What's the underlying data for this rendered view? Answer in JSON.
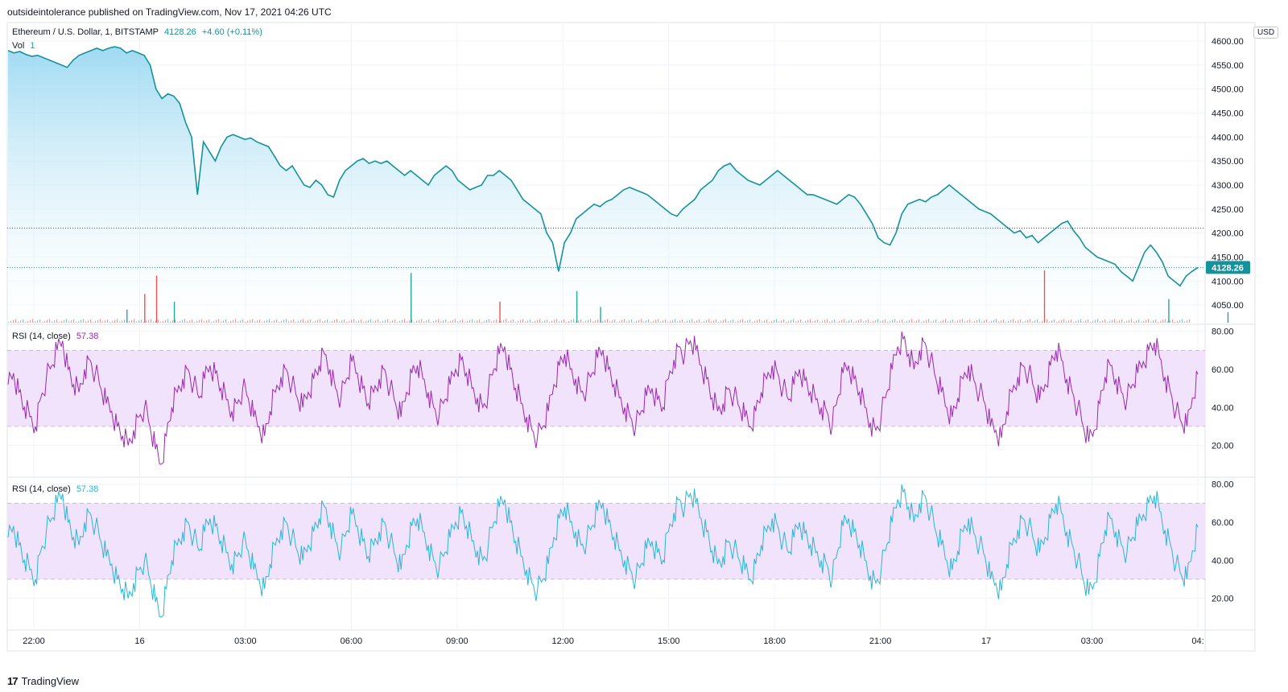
{
  "header": {
    "published_text": "outsideintolerance published on TradingView.com, Nov 17, 2021 04:26 UTC"
  },
  "legend": {
    "symbol": "Ethereum / U.S. Dollar, 1, BITSTAMP",
    "price": "4128.26",
    "change": "+4.60 (+0.11%)",
    "vol_label": "Vol",
    "vol_value": "1"
  },
  "rsi_panels": [
    {
      "label": "RSI (14, close)",
      "value": "57.38",
      "color": "#9c27b0"
    },
    {
      "label": "RSI (14, close)",
      "value": "57.38",
      "color": "#29b6d8"
    }
  ],
  "currency": "USD",
  "footer": {
    "brand": "TradingView",
    "logo_glyph": "17"
  },
  "colors": {
    "price_line": "#16929c",
    "area_top": "#8fd4f0",
    "last_price_badge": "#16929c",
    "vol_up": "#26a69a",
    "vol_down": "#ef5350",
    "rsi_band": "#f1e3fb",
    "grid": "#f0f3fa"
  },
  "chart_data": [
    {
      "type": "area",
      "title": "Ethereum / U.S. Dollar, 1, BITSTAMP",
      "x_ticks": [
        "22:00",
        "16",
        "03:00",
        "06:00",
        "09:00",
        "12:00",
        "15:00",
        "18:00",
        "21:00",
        "17",
        "03:00",
        "04:"
      ],
      "y_ticks": [
        "4050.00",
        "4100.00",
        "4150.00",
        "4200.00",
        "4250.00",
        "4300.00",
        "4350.00",
        "4400.00",
        "4450.00",
        "4500.00",
        "4550.00",
        "4600.00"
      ],
      "ylim": [
        4010,
        4625
      ],
      "last_value": 4128.26,
      "reference_line": 4210,
      "series": [
        {
          "values": [
            4580,
            4575,
            4578,
            4572,
            4568,
            4570,
            4565,
            4560,
            4555,
            4550,
            4545,
            4560,
            4570,
            4575,
            4580,
            4585,
            4580,
            4585,
            4588,
            4585,
            4575,
            4580,
            4575,
            4570,
            4550,
            4500,
            4480,
            4490,
            4485,
            4470,
            4430,
            4400,
            4280,
            4390,
            4370,
            4350,
            4380,
            4400,
            4405,
            4400,
            4395,
            4398,
            4390,
            4385,
            4380,
            4360,
            4340,
            4330,
            4340,
            4320,
            4300,
            4295,
            4310,
            4300,
            4280,
            4275,
            4310,
            4330,
            4340,
            4350,
            4355,
            4345,
            4350,
            4345,
            4350,
            4340,
            4330,
            4320,
            4330,
            4320,
            4310,
            4300,
            4320,
            4330,
            4340,
            4330,
            4310,
            4300,
            4290,
            4295,
            4300,
            4320,
            4320,
            4330,
            4320,
            4310,
            4290,
            4270,
            4260,
            4250,
            4240,
            4200,
            4180,
            4120,
            4180,
            4200,
            4230,
            4240,
            4250,
            4260,
            4255,
            4265,
            4270,
            4280,
            4290,
            4295,
            4290,
            4285,
            4280,
            4270,
            4260,
            4250,
            4240,
            4235,
            4250,
            4260,
            4270,
            4290,
            4300,
            4310,
            4330,
            4340,
            4345,
            4330,
            4320,
            4310,
            4305,
            4300,
            4310,
            4320,
            4330,
            4320,
            4310,
            4300,
            4290,
            4280,
            4280,
            4275,
            4270,
            4265,
            4260,
            4270,
            4280,
            4275,
            4260,
            4240,
            4220,
            4190,
            4180,
            4175,
            4200,
            4240,
            4260,
            4265,
            4270,
            4265,
            4275,
            4280,
            4290,
            4300,
            4290,
            4280,
            4270,
            4260,
            4250,
            4245,
            4240,
            4230,
            4220,
            4210,
            4200,
            4205,
            4190,
            4195,
            4180,
            4190,
            4200,
            4210,
            4220,
            4225,
            4205,
            4190,
            4170,
            4160,
            4150,
            4145,
            4140,
            4135,
            4120,
            4110,
            4100,
            4130,
            4160,
            4175,
            4160,
            4140,
            4110,
            4100,
            4090,
            4110,
            4120,
            4128.26
          ]
        }
      ]
    },
    {
      "type": "bar",
      "title": "Vol",
      "note": "volume histogram along bottom of price pane",
      "spikes": [
        {
          "index": 20,
          "rel": 0.25
        },
        {
          "index": 23,
          "rel": 0.55
        },
        {
          "index": 25,
          "rel": 0.9
        },
        {
          "index": 28,
          "rel": 0.4
        },
        {
          "index": 68,
          "rel": 0.95
        },
        {
          "index": 83,
          "rel": 0.4
        },
        {
          "index": 96,
          "rel": 0.6
        },
        {
          "index": 100,
          "rel": 0.3
        },
        {
          "index": 175,
          "rel": 1.0
        },
        {
          "index": 196,
          "rel": 0.45
        },
        {
          "index": 206,
          "rel": 0.2
        }
      ]
    },
    {
      "type": "line",
      "title": "RSI (14, close)",
      "ylim": [
        5,
        82
      ],
      "y_ticks": [
        "20.00",
        "40.00",
        "60.00",
        "80.00"
      ],
      "bands": [
        30,
        70
      ],
      "last_value": 57.38,
      "series": [
        {
          "values": [
            52,
            58,
            48,
            40,
            35,
            30,
            45,
            55,
            62,
            70,
            75,
            60,
            52,
            48,
            60,
            65,
            58,
            50,
            42,
            38,
            30,
            25,
            20,
            28,
            35,
            40,
            30,
            18,
            10,
            25,
            40,
            48,
            55,
            60,
            52,
            45,
            55,
            62,
            58,
            50,
            44,
            38,
            42,
            50,
            45,
            35,
            30,
            25,
            38,
            48,
            56,
            60,
            52,
            45,
            40,
            48,
            55,
            62,
            68,
            60,
            50,
            45,
            55,
            64,
            58,
            50,
            42,
            48,
            55,
            60,
            50,
            42,
            35,
            48,
            58,
            62,
            55,
            48,
            40,
            36,
            44,
            52,
            60,
            65,
            58,
            50,
            45,
            40,
            48,
            60,
            68,
            72,
            60,
            50,
            42,
            35,
            28,
            24,
            30,
            38,
            52,
            62,
            68,
            60,
            55,
            48,
            50,
            58,
            66,
            70,
            60,
            52,
            45,
            40,
            35,
            30,
            38,
            46,
            50,
            44,
            40,
            55,
            65,
            72,
            68,
            75,
            70,
            62,
            55,
            45,
            38,
            42,
            50,
            46,
            40,
            35,
            30,
            38,
            48,
            55,
            62,
            58,
            50,
            44,
            52,
            60,
            54,
            48,
            44,
            40,
            38,
            30,
            45,
            58,
            62,
            55,
            48,
            40,
            32,
            28,
            36,
            48,
            60,
            72,
            76,
            68,
            60,
            70,
            74,
            65,
            55,
            48,
            40,
            35,
            45,
            55,
            62,
            54,
            48,
            42,
            30,
            28,
            24,
            38,
            48,
            56,
            62,
            58,
            50,
            44,
            52,
            62,
            70,
            65,
            55,
            48,
            40,
            30,
            22,
            28,
            42,
            56,
            62,
            55,
            48,
            44,
            52,
            58,
            64,
            70,
            74,
            66,
            56,
            48,
            38,
            32,
            30,
            45,
            57.38
          ]
        },
        {
          "values": [
            52,
            58,
            48,
            40,
            35,
            30,
            45,
            55,
            62,
            70,
            75,
            60,
            52,
            48,
            60,
            65,
            58,
            50,
            42,
            38,
            30,
            25,
            20,
            28,
            35,
            40,
            30,
            18,
            10,
            25,
            40,
            48,
            55,
            60,
            52,
            45,
            55,
            62,
            58,
            50,
            44,
            38,
            42,
            50,
            45,
            35,
            30,
            25,
            38,
            48,
            56,
            60,
            52,
            45,
            40,
            48,
            55,
            62,
            68,
            60,
            50,
            45,
            55,
            64,
            58,
            50,
            42,
            48,
            55,
            60,
            50,
            42,
            35,
            48,
            58,
            62,
            55,
            48,
            40,
            36,
            44,
            52,
            60,
            65,
            58,
            50,
            45,
            40,
            48,
            60,
            68,
            72,
            60,
            50,
            42,
            35,
            28,
            24,
            30,
            38,
            52,
            62,
            68,
            60,
            55,
            48,
            50,
            58,
            66,
            70,
            60,
            52,
            45,
            40,
            35,
            30,
            38,
            46,
            50,
            44,
            40,
            55,
            65,
            72,
            68,
            75,
            70,
            62,
            55,
            45,
            38,
            42,
            50,
            46,
            40,
            35,
            30,
            38,
            48,
            55,
            62,
            58,
            50,
            44,
            52,
            60,
            54,
            48,
            44,
            40,
            38,
            30,
            45,
            58,
            62,
            55,
            48,
            40,
            32,
            28,
            36,
            48,
            60,
            72,
            76,
            68,
            60,
            70,
            74,
            65,
            55,
            48,
            40,
            35,
            45,
            55,
            62,
            54,
            48,
            42,
            30,
            28,
            24,
            38,
            48,
            56,
            62,
            58,
            50,
            44,
            52,
            62,
            70,
            65,
            55,
            48,
            40,
            30,
            22,
            28,
            42,
            56,
            62,
            55,
            48,
            44,
            52,
            58,
            64,
            70,
            74,
            66,
            56,
            48,
            38,
            32,
            30,
            45,
            57.38
          ]
        }
      ]
    }
  ]
}
